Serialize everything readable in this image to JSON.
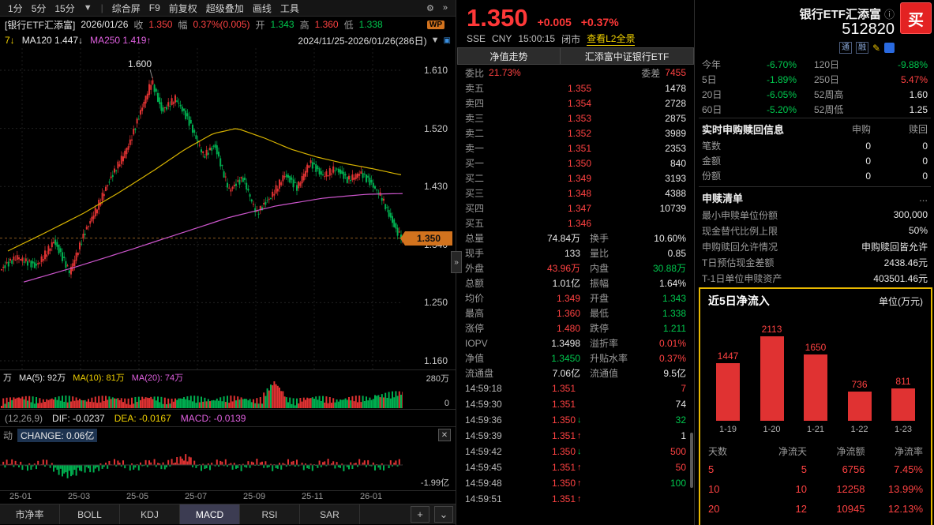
{
  "icons": {
    "dropdown": "▼",
    "gear": "⚙",
    "more": "»",
    "collapse": "»",
    "close": "✕",
    "info": "ⓘ",
    "pencil": "✎",
    "plus": "+",
    "chevron_down": "⌄",
    "ellipsis": "..."
  },
  "toolbar": {
    "periods": [
      "1分",
      "5分",
      "15分"
    ],
    "items": [
      "综合屏",
      "F9",
      "前复权",
      "超级叠加",
      "画线",
      "工具"
    ]
  },
  "info_row": {
    "symbol": "[银行ETF汇添富]",
    "date": "2026/01/26",
    "close_label": "收",
    "close": "1.350",
    "amp_label": "幅",
    "amp": "0.37%(0.005)",
    "open_label": "开",
    "open": "1.343",
    "high_label": "高",
    "high": "1.360",
    "low_label": "低",
    "low": "1.338",
    "wp_badge": "WP"
  },
  "ma_row": {
    "prefix": "7↓",
    "ma120": "MA120 1.447↓",
    "ma250": "MA250 1.419↑",
    "date_range": "2024/11/25-2026/01/26(286日)"
  },
  "chart": {
    "y_ticks": [
      "1.610",
      "1.520",
      "1.430",
      "1.340",
      "1.250",
      "1.160"
    ],
    "peak_annotation": "1.600",
    "current_price_tag": "1.350",
    "x_labels": [
      "25-01",
      "25-03",
      "25-05",
      "25-07",
      "25-09",
      "25-11",
      "26-01"
    ]
  },
  "volume_pane": {
    "unit": "万",
    "ma5": "MA(5): 92万",
    "ma10": "MA(10): 81万",
    "ma20": "MA(20): 74万",
    "scale_max": "280万",
    "scale_min": "0"
  },
  "macd_row": {
    "params": "(12,26,9)",
    "dif": "DIF: -0.0237",
    "dea": "DEA: -0.0167",
    "macd": "MACD: -0.0139"
  },
  "change_pane": {
    "prefix": "动",
    "label": "CHANGE: 0.06亿",
    "scale_min": "-1.99亿"
  },
  "bottom_tabs": [
    "市净率",
    "BOLL",
    "KDJ",
    "MACD",
    "RSI",
    "SAR"
  ],
  "active_bottom_tab": "MACD",
  "quote": {
    "price": "1.350",
    "change": "+0.005",
    "pct": "+0.37%",
    "exchange": "SSE",
    "currency": "CNY",
    "time": "15:00:15",
    "status": "闭市",
    "l2_link": "查看L2全景",
    "tabs": [
      "净值走势",
      "汇添富中证银行ETF"
    ],
    "weibi_label": "委比",
    "weibi_value": "21.73%",
    "weicha_label": "委差",
    "weicha_value": "7455",
    "asks": [
      [
        "卖五",
        "1.355",
        "1478"
      ],
      [
        "卖四",
        "1.354",
        "2728"
      ],
      [
        "卖三",
        "1.353",
        "2875"
      ],
      [
        "卖二",
        "1.352",
        "3989"
      ],
      [
        "卖一",
        "1.351",
        "2353"
      ]
    ],
    "bids": [
      [
        "买一",
        "1.350",
        "840"
      ],
      [
        "买二",
        "1.349",
        "3193"
      ],
      [
        "买三",
        "1.348",
        "4388"
      ],
      [
        "买四",
        "1.347",
        "10739"
      ],
      [
        "买五",
        "1.346",
        ""
      ]
    ],
    "stats": [
      [
        "总量",
        "74.84万",
        "w",
        "换手",
        "10.60%",
        "w"
      ],
      [
        "现手",
        "133",
        "w",
        "量比",
        "0.85",
        "w"
      ],
      [
        "外盘",
        "43.96万",
        "r",
        "内盘",
        "30.88万",
        "g"
      ],
      [
        "总额",
        "1.01亿",
        "w",
        "振幅",
        "1.64%",
        "w"
      ],
      [
        "均价",
        "1.349",
        "r",
        "开盘",
        "1.343",
        "g"
      ],
      [
        "最高",
        "1.360",
        "r",
        "最低",
        "1.338",
        "g"
      ],
      [
        "涨停",
        "1.480",
        "r",
        "跌停",
        "1.211",
        "g"
      ],
      [
        "IOPV",
        "1.3498",
        "w",
        "溢折率",
        "0.01%",
        "r"
      ],
      [
        "净值",
        "1.3450",
        "g",
        "升贴水率",
        "0.37%",
        "r"
      ],
      [
        "流通盘",
        "7.06亿",
        "w",
        "流通值",
        "9.5亿",
        "w"
      ]
    ],
    "ticks": [
      [
        "14:59:18",
        "1.351",
        "n",
        "7",
        "r"
      ],
      [
        "14:59:30",
        "1.351",
        "n",
        "74",
        "w"
      ],
      [
        "14:59:36",
        "1.350",
        "d",
        "32",
        "g"
      ],
      [
        "14:59:39",
        "1.351",
        "u",
        "1",
        "w"
      ],
      [
        "14:59:42",
        "1.350",
        "d",
        "500",
        "r"
      ],
      [
        "14:59:45",
        "1.351",
        "u",
        "50",
        "r"
      ],
      [
        "14:59:48",
        "1.350",
        "u",
        "100",
        "g"
      ],
      [
        "14:59:51",
        "1.351",
        "u",
        "",
        "w"
      ]
    ]
  },
  "right": {
    "name": "银行ETF汇添富",
    "code": "512820",
    "buy_button": "买",
    "badges": [
      "通",
      "融"
    ],
    "perf": [
      [
        "今年",
        "-6.70%",
        "g",
        "120日",
        "-9.88%",
        "g"
      ],
      [
        "5日",
        "-1.89%",
        "g",
        "250日",
        "5.47%",
        "r"
      ],
      [
        "20日",
        "-6.05%",
        "g",
        "52周高",
        "1.60",
        "w"
      ],
      [
        "60日",
        "-5.20%",
        "g",
        "52周低",
        "1.25",
        "w"
      ]
    ],
    "realtime": {
      "title": "实时申购赎回信息",
      "col_buy": "申购",
      "col_redeem": "赎回",
      "rows": [
        [
          "笔数",
          "0",
          "0"
        ],
        [
          "金额",
          "0",
          "0"
        ],
        [
          "份额",
          "0",
          "0"
        ]
      ]
    },
    "list": {
      "title": "申赎清单",
      "more": "...",
      "rows": [
        [
          "最小申赎单位份额",
          "300,000"
        ],
        [
          "现金替代比例上限",
          "50%"
        ],
        [
          "申购赎回允许情况",
          "申购赎回皆允许"
        ],
        [
          "T日预估现金差额",
          "2438.46元"
        ],
        [
          "T-1日单位申赎资产",
          "403501.46元"
        ]
      ]
    },
    "flow": {
      "title": "近5日净流入",
      "unit": "单位(万元)",
      "chart_data": {
        "type": "bar",
        "categories": [
          "1-19",
          "1-20",
          "1-21",
          "1-22",
          "1-23"
        ],
        "values": [
          1447,
          2113,
          1650,
          736,
          811
        ],
        "title": "近5日净流入",
        "ylabel": "万元"
      },
      "table": {
        "headers": [
          "天数",
          "净流天",
          "净流额",
          "净流率"
        ],
        "rows": [
          [
            "5",
            "5",
            "6756",
            "7.45%"
          ],
          [
            "10",
            "10",
            "12258",
            "13.99%"
          ],
          [
            "20",
            "12",
            "10945",
            "12.13%"
          ]
        ]
      }
    }
  },
  "colors": {
    "up": "#ff4242",
    "down": "#00c84e",
    "price_tag": "#d2731e",
    "highlight_border": "#e8b800"
  }
}
